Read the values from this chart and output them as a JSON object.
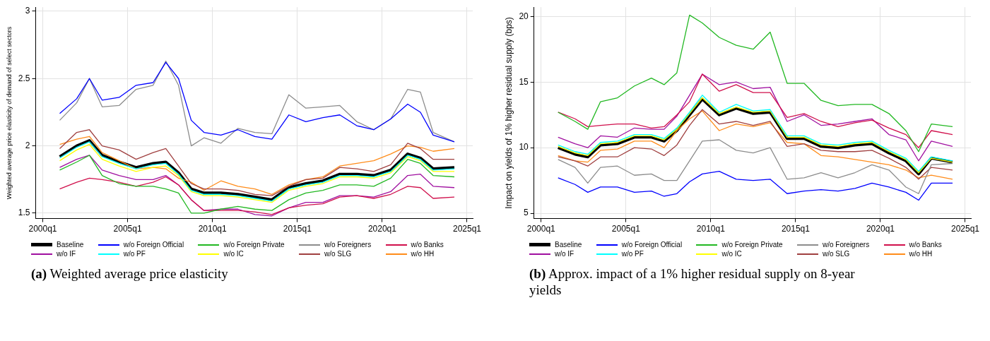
{
  "chart_data": [
    {
      "type": "line",
      "title": "(a) Weighted average price elasticity",
      "ylabel": "Weighted average price elasticity of demand of select sectors",
      "legend": "bottom",
      "grid": true,
      "marker": "none",
      "line_style": "solid",
      "x": [
        "2001-01",
        "2002-01",
        "2002-10",
        "2003-07",
        "2004-07",
        "2005-07",
        "2006-07",
        "2007-04",
        "2008-01",
        "2008-10",
        "2009-07",
        "2010-07",
        "2011-07",
        "2012-07",
        "2013-07",
        "2014-07",
        "2015-07",
        "2016-07",
        "2017-07",
        "2018-07",
        "2019-07",
        "2020-07",
        "2021-07",
        "2022-04",
        "2023-01",
        "2024-04"
      ],
      "xlim": [
        "1999-08",
        "2025-05"
      ],
      "xticks": [
        {
          "value": "2000-01",
          "label": "2000q1"
        },
        {
          "value": "2005-01",
          "label": "2005q1"
        },
        {
          "value": "2010-01",
          "label": "2010q1"
        },
        {
          "value": "2015-01",
          "label": "2015q1"
        },
        {
          "value": "2020-01",
          "label": "2020q1"
        },
        {
          "value": "2025-01",
          "label": "2025q1"
        }
      ],
      "ylim": [
        1.46,
        3.03
      ],
      "yticks": [
        1.5,
        2,
        2.5,
        3
      ],
      "series": [
        {
          "name": "Baseline",
          "color": "#000000",
          "values": [
            1.92,
            2.0,
            2.04,
            1.93,
            1.88,
            1.84,
            1.87,
            1.88,
            1.8,
            1.68,
            1.65,
            1.65,
            1.64,
            1.62,
            1.6,
            1.69,
            1.72,
            1.74,
            1.79,
            1.79,
            1.78,
            1.82,
            1.94,
            1.91,
            1.83,
            1.84
          ]
        },
        {
          "name": "w/o Foreign Official",
          "color": "#0000ff",
          "values": [
            2.24,
            2.35,
            2.5,
            2.34,
            2.36,
            2.45,
            2.47,
            2.62,
            2.5,
            2.19,
            2.1,
            2.08,
            2.12,
            2.07,
            2.05,
            2.23,
            2.18,
            2.21,
            2.23,
            2.15,
            2.12,
            2.2,
            2.31,
            2.25,
            2.08,
            2.03
          ]
        },
        {
          "name": "w/o Foreign Private",
          "color": "#22b822",
          "values": [
            1.82,
            1.88,
            1.93,
            1.78,
            1.72,
            1.7,
            1.7,
            1.68,
            1.65,
            1.5,
            1.5,
            1.53,
            1.55,
            1.53,
            1.52,
            1.6,
            1.65,
            1.67,
            1.71,
            1.71,
            1.7,
            1.76,
            1.9,
            1.87,
            1.78,
            1.77
          ]
        },
        {
          "name": "w/o Foreigners",
          "color": "#8c8c8c",
          "values": [
            2.19,
            2.32,
            2.5,
            2.29,
            2.3,
            2.42,
            2.45,
            2.63,
            2.45,
            2.0,
            2.06,
            2.02,
            2.13,
            2.1,
            2.09,
            2.38,
            2.28,
            2.29,
            2.3,
            2.18,
            2.12,
            2.2,
            2.42,
            2.4,
            2.1,
            2.03
          ]
        },
        {
          "name": "w/o Banks",
          "color": "#d0104c",
          "values": [
            1.68,
            1.73,
            1.76,
            1.75,
            1.73,
            1.7,
            1.73,
            1.77,
            1.71,
            1.6,
            1.52,
            1.52,
            1.52,
            1.51,
            1.49,
            1.54,
            1.56,
            1.57,
            1.62,
            1.63,
            1.61,
            1.64,
            1.7,
            1.69,
            1.61,
            1.62
          ]
        },
        {
          "name": "w/o IF",
          "color": "#a010a0",
          "values": [
            1.84,
            1.9,
            1.93,
            1.82,
            1.78,
            1.75,
            1.75,
            1.78,
            1.71,
            1.6,
            1.52,
            1.53,
            1.53,
            1.49,
            1.48,
            1.54,
            1.58,
            1.58,
            1.63,
            1.63,
            1.62,
            1.66,
            1.78,
            1.79,
            1.7,
            1.69
          ]
        },
        {
          "name": "w/o PF",
          "color": "#00ffff",
          "values": [
            1.91,
            1.99,
            2.03,
            1.92,
            1.87,
            1.83,
            1.86,
            1.87,
            1.79,
            1.67,
            1.64,
            1.64,
            1.63,
            1.61,
            1.59,
            1.68,
            1.71,
            1.73,
            1.78,
            1.78,
            1.77,
            1.81,
            1.93,
            1.9,
            1.82,
            1.83
          ]
        },
        {
          "name": "w/o IC",
          "color": "#ffff00",
          "values": [
            1.89,
            1.97,
            2.01,
            1.9,
            1.85,
            1.81,
            1.84,
            1.85,
            1.78,
            1.66,
            1.63,
            1.63,
            1.62,
            1.6,
            1.58,
            1.67,
            1.7,
            1.72,
            1.77,
            1.77,
            1.76,
            1.8,
            1.92,
            1.89,
            1.81,
            1.81
          ]
        },
        {
          "name": "w/o SLG",
          "color": "#a04040",
          "values": [
            1.98,
            2.1,
            2.12,
            2.0,
            1.97,
            1.9,
            1.95,
            1.98,
            1.85,
            1.72,
            1.68,
            1.68,
            1.67,
            1.64,
            1.63,
            1.7,
            1.75,
            1.76,
            1.84,
            1.83,
            1.81,
            1.86,
            2.02,
            1.98,
            1.9,
            1.9
          ]
        },
        {
          "name": "w/o HH",
          "color": "#ff8c1a",
          "values": [
            2.01,
            2.05,
            2.07,
            1.95,
            1.89,
            1.83,
            1.84,
            1.83,
            1.76,
            1.73,
            1.67,
            1.74,
            1.7,
            1.68,
            1.64,
            1.71,
            1.75,
            1.77,
            1.85,
            1.87,
            1.89,
            1.94,
            2.0,
            1.99,
            1.96,
            1.98
          ]
        }
      ]
    },
    {
      "type": "line",
      "title": "(b) Approx. impact of a 1% higher residual supply on 8-year yields",
      "ylabel": "Impact on yields of 1% higher residual supply (bps)",
      "legend": "bottom",
      "grid": true,
      "marker": "none",
      "line_style": "solid",
      "x": [
        "2001-01",
        "2002-01",
        "2002-10",
        "2003-07",
        "2004-07",
        "2005-07",
        "2006-07",
        "2007-04",
        "2008-01",
        "2008-10",
        "2009-07",
        "2010-07",
        "2011-07",
        "2012-07",
        "2013-07",
        "2014-07",
        "2015-07",
        "2016-07",
        "2017-07",
        "2018-07",
        "2019-07",
        "2020-07",
        "2021-07",
        "2022-04",
        "2023-01",
        "2024-04"
      ],
      "xlim": [
        "1999-08",
        "2025-05"
      ],
      "xticks": [
        {
          "value": "2000-01",
          "label": "2000q1"
        },
        {
          "value": "2005-01",
          "label": "2005q1"
        },
        {
          "value": "2010-01",
          "label": "2010q1"
        },
        {
          "value": "2015-01",
          "label": "2015q1"
        },
        {
          "value": "2020-01",
          "label": "2020q1"
        },
        {
          "value": "2025-01",
          "label": "2025q1"
        }
      ],
      "ylim": [
        4.6,
        20.7
      ],
      "yticks": [
        5,
        10,
        15,
        20
      ],
      "series": [
        {
          "name": "Baseline",
          "color": "#000000",
          "values": [
            10.0,
            9.5,
            9.3,
            10.2,
            10.3,
            10.8,
            10.8,
            10.5,
            11.3,
            12.5,
            13.7,
            12.5,
            13.0,
            12.6,
            12.7,
            10.7,
            10.7,
            10.1,
            10.0,
            10.2,
            10.3,
            9.6,
            9.0,
            8.0,
            9.2,
            8.9
          ]
        },
        {
          "name": "w/o Foreign Official",
          "color": "#0000ff",
          "values": [
            7.7,
            7.2,
            6.6,
            7.0,
            7.0,
            6.6,
            6.7,
            6.3,
            6.5,
            7.4,
            8.0,
            8.2,
            7.6,
            7.5,
            7.6,
            6.5,
            6.7,
            6.8,
            6.7,
            6.9,
            7.3,
            7.0,
            6.6,
            6.0,
            7.3,
            7.3
          ]
        },
        {
          "name": "w/o Foreign Private",
          "color": "#22b822",
          "values": [
            12.7,
            12.0,
            11.4,
            13.5,
            13.8,
            14.7,
            15.3,
            14.8,
            15.7,
            20.1,
            19.5,
            18.4,
            17.8,
            17.5,
            18.8,
            14.9,
            14.9,
            13.6,
            13.2,
            13.3,
            13.3,
            12.6,
            11.3,
            9.7,
            11.8,
            11.6
          ]
        },
        {
          "name": "w/o Foreigners",
          "color": "#8c8c8c",
          "values": [
            9.1,
            8.5,
            7.3,
            8.5,
            8.6,
            7.9,
            8.0,
            7.5,
            7.5,
            9.0,
            10.5,
            10.6,
            9.8,
            9.6,
            10.0,
            7.6,
            7.7,
            8.1,
            7.7,
            8.1,
            8.7,
            8.3,
            7.0,
            6.5,
            8.7,
            8.8
          ]
        },
        {
          "name": "w/o Banks",
          "color": "#d0104c",
          "values": [
            12.7,
            12.2,
            11.6,
            11.7,
            11.8,
            11.8,
            11.5,
            11.6,
            12.5,
            13.5,
            15.6,
            14.3,
            14.8,
            14.2,
            14.2,
            12.3,
            12.6,
            12.0,
            11.6,
            11.9,
            12.1,
            11.5,
            11.0,
            10.0,
            11.3,
            11.0
          ]
        },
        {
          "name": "w/o IF",
          "color": "#a010a0",
          "values": [
            10.8,
            10.3,
            10.0,
            10.9,
            10.8,
            11.5,
            11.4,
            11.4,
            12.4,
            14.0,
            15.6,
            14.8,
            15.0,
            14.5,
            14.6,
            12.0,
            12.5,
            11.7,
            11.8,
            12.0,
            12.2,
            11.0,
            10.6,
            9.0,
            10.5,
            10.1
          ]
        },
        {
          "name": "w/o PF",
          "color": "#00ffff",
          "values": [
            10.2,
            9.7,
            9.5,
            10.4,
            10.5,
            11.0,
            11.0,
            10.7,
            11.5,
            12.7,
            14.0,
            12.7,
            13.3,
            12.8,
            12.9,
            10.9,
            10.9,
            10.3,
            10.2,
            10.4,
            10.5,
            9.8,
            9.2,
            8.2,
            9.3,
            9.0
          ]
        },
        {
          "name": "w/o IC",
          "color": "#ffff00",
          "values": [
            10.1,
            9.6,
            9.4,
            10.3,
            10.4,
            10.9,
            10.9,
            10.6,
            11.4,
            12.6,
            13.8,
            12.6,
            13.1,
            12.7,
            12.8,
            10.8,
            10.8,
            10.2,
            10.1,
            10.3,
            10.4,
            9.7,
            9.1,
            8.1,
            9.2,
            8.9
          ]
        },
        {
          "name": "w/o SLG",
          "color": "#a04040",
          "values": [
            9.3,
            9.0,
            8.6,
            9.3,
            9.3,
            10.0,
            9.9,
            9.4,
            10.2,
            11.7,
            12.9,
            11.8,
            12.0,
            11.7,
            12.0,
            10.1,
            10.3,
            9.8,
            9.7,
            9.7,
            9.8,
            9.2,
            8.5,
            7.6,
            8.5,
            8.3
          ]
        },
        {
          "name": "w/o HH",
          "color": "#ff8c1a",
          "values": [
            9.4,
            9.0,
            8.9,
            9.8,
            9.9,
            10.5,
            10.5,
            10.0,
            11.3,
            12.2,
            12.8,
            11.3,
            11.8,
            11.6,
            11.9,
            10.4,
            10.3,
            9.4,
            9.3,
            9.1,
            8.9,
            8.7,
            8.3,
            7.7,
            7.9,
            7.6
          ]
        }
      ]
    }
  ]
}
